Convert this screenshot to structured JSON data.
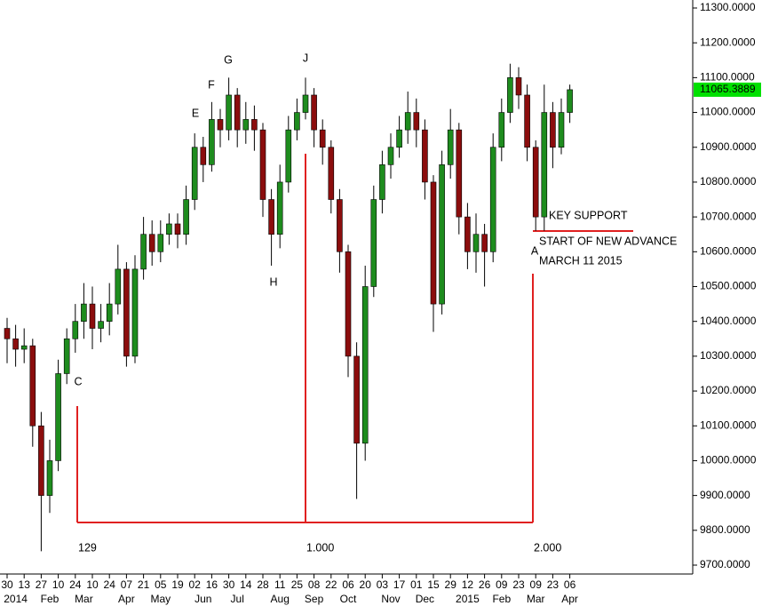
{
  "chart_data": {
    "type": "candlestick",
    "categories": [
      "30",
      null,
      "13",
      null,
      "27",
      null,
      "10",
      null,
      "24",
      null,
      "10",
      null,
      "24",
      null,
      "07",
      null,
      "21",
      null,
      "05",
      null,
      "19",
      null,
      "02",
      null,
      "16",
      null,
      "30",
      null,
      "14",
      null,
      "28",
      null,
      "11",
      null,
      "25",
      null,
      "08",
      null,
      "22",
      null,
      "06",
      null,
      "20",
      null,
      "03",
      null,
      "17",
      null,
      "01",
      null,
      "15",
      null,
      "29",
      null,
      "12",
      null,
      "26",
      null,
      "09",
      null,
      "23",
      null,
      "09",
      null,
      "23",
      null,
      "06"
    ],
    "categories_row2": [
      null,
      "2014",
      null,
      null,
      null,
      "Feb",
      null,
      null,
      null,
      "Mar",
      null,
      null,
      null,
      null,
      "Apr",
      null,
      null,
      null,
      "May",
      null,
      null,
      null,
      null,
      "Jun",
      null,
      null,
      null,
      "Jul",
      null,
      null,
      null,
      null,
      "Aug",
      null,
      null,
      null,
      "Sep",
      null,
      null,
      null,
      "Oct",
      null,
      null,
      null,
      null,
      "Nov",
      null,
      null,
      null,
      "Dec",
      null,
      null,
      null,
      null,
      "2015",
      null,
      null,
      null,
      "Feb",
      null,
      null,
      null,
      "Mar",
      null,
      null,
      null,
      "Apr"
    ],
    "open": [
      10380,
      10350,
      10320,
      10330,
      10100,
      9900,
      10000,
      10250,
      10350,
      10400,
      10450,
      10380,
      10400,
      10450,
      10550,
      10300,
      10550,
      10650,
      10600,
      10650,
      10680,
      10650,
      10750,
      10900,
      10850,
      10980,
      10950,
      11050,
      10950,
      10980,
      10950,
      10750,
      10650,
      10800,
      10950,
      11000,
      11050,
      10950,
      10900,
      10750,
      10600,
      10300,
      10050,
      10500,
      10750,
      10850,
      10900,
      10950,
      11000,
      10950,
      10800,
      10450,
      10850,
      10950,
      10700,
      10600,
      10650,
      10600,
      10900,
      11000,
      11100,
      11050,
      10900,
      10700,
      11000,
      10900,
      11000
    ],
    "high": [
      10410,
      10390,
      10380,
      10350,
      10140,
      10060,
      10290,
      10380,
      10450,
      10510,
      10500,
      10450,
      10510,
      10620,
      10570,
      10590,
      10700,
      10690,
      10690,
      10710,
      10710,
      10790,
      10940,
      10930,
      11030,
      11010,
      11100,
      11070,
      11030,
      11020,
      10970,
      10780,
      10850,
      10990,
      11040,
      11100,
      11070,
      10980,
      10920,
      10780,
      10620,
      10340,
      10560,
      10790,
      10890,
      10940,
      10990,
      11060,
      11040,
      10980,
      10820,
      10890,
      11010,
      10970,
      10740,
      10710,
      10680,
      10940,
      11040,
      11140,
      11130,
      11080,
      10920,
      11080,
      11030,
      11040,
      11080
    ],
    "low": [
      10280,
      10270,
      10280,
      10040,
      9740,
      9850,
      9970,
      10220,
      10310,
      10350,
      10320,
      10340,
      10360,
      10420,
      10270,
      10280,
      10520,
      10560,
      10570,
      10620,
      10610,
      10620,
      10720,
      10800,
      10830,
      10900,
      10920,
      10900,
      10910,
      10890,
      10700,
      10560,
      10610,
      10770,
      10920,
      10980,
      10900,
      10850,
      10710,
      10540,
      10240,
      9890,
      10000,
      10470,
      10710,
      10810,
      10870,
      10910,
      10900,
      10750,
      10370,
      10420,
      10810,
      10650,
      10550,
      10540,
      10500,
      10570,
      10860,
      10970,
      11010,
      10860,
      10660,
      10660,
      10840,
      10880,
      10970
    ],
    "close": [
      10350,
      10320,
      10330,
      10100,
      9900,
      10000,
      10250,
      10350,
      10400,
      10450,
      10380,
      10400,
      10450,
      10550,
      10300,
      10550,
      10650,
      10600,
      10650,
      10680,
      10650,
      10750,
      10900,
      10850,
      10980,
      10950,
      11050,
      10950,
      10980,
      10950,
      10750,
      10650,
      10800,
      10950,
      11000,
      11050,
      10950,
      10900,
      10750,
      10600,
      10300,
      10050,
      10500,
      10750,
      10850,
      10900,
      10950,
      11000,
      10950,
      10800,
      10450,
      10850,
      10950,
      10700,
      10600,
      10650,
      10600,
      10900,
      11000,
      11100,
      11050,
      10900,
      10700,
      11000,
      10900,
      11000,
      11065.3889
    ],
    "up_color": "#1e8c1e",
    "down_color": "#8b0d0d",
    "last_color": "#00e000",
    "last_label": "11065.3889",
    "ylim": [
      9700,
      11300
    ],
    "yticks": [
      {
        "value": 11300,
        "label": "11300.0000"
      },
      {
        "value": 11200,
        "label": "11200.0000"
      },
      {
        "value": 11100,
        "label": "11100.0000"
      },
      {
        "value": 11000,
        "label": "11000.0000"
      },
      {
        "value": 10900,
        "label": "10900.0000"
      },
      {
        "value": 10800,
        "label": "10800.0000"
      },
      {
        "value": 10700,
        "label": "10700.0000"
      },
      {
        "value": 10600,
        "label": "10600.0000"
      },
      {
        "value": 10500,
        "label": "10500.0000"
      },
      {
        "value": 10400,
        "label": "10400.0000"
      },
      {
        "value": 10300,
        "label": "10300.0000"
      },
      {
        "value": 10200,
        "label": "10200.0000"
      },
      {
        "value": 10100,
        "label": "10100.0000"
      },
      {
        "value": 10000,
        "label": "10000.0000"
      },
      {
        "value": 9900,
        "label": "9900.0000"
      },
      {
        "value": 9800,
        "label": "9800.0000"
      },
      {
        "value": 9700,
        "label": "9700.0000"
      }
    ],
    "annotations": [
      "C",
      "E",
      "F",
      "G",
      "J",
      "H",
      "A",
      "KEY SUPPORT",
      "START OF NEW ADVANCE",
      "MARCH 11 2015",
      "129",
      "1.000",
      "2.000"
    ]
  }
}
